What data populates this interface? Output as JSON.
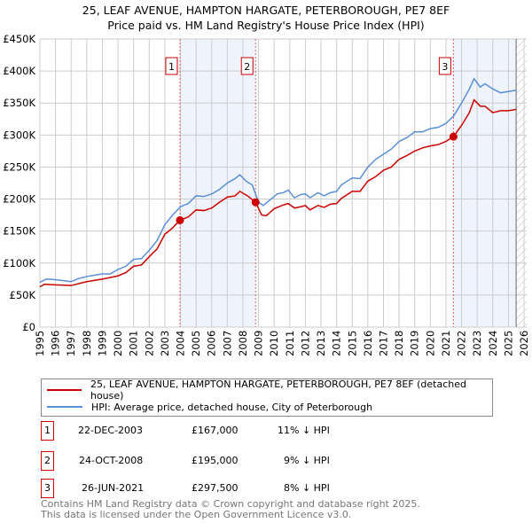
{
  "title": "25, LEAF AVENUE, HAMPTON HARGATE, PETERBOROUGH, PE7 8EF",
  "subtitle": "Price paid vs. HM Land Registry's House Price Index (HPI)",
  "chart_data": {
    "type": "line",
    "ylim": [
      0,
      450000
    ],
    "xlim": [
      1995,
      2026
    ],
    "yticks": [
      {
        "v": 0,
        "l": "£0"
      },
      {
        "v": 50000,
        "l": "£50K"
      },
      {
        "v": 100000,
        "l": "£100K"
      },
      {
        "v": 150000,
        "l": "£150K"
      },
      {
        "v": 200000,
        "l": "£200K"
      },
      {
        "v": 250000,
        "l": "£250K"
      },
      {
        "v": 300000,
        "l": "£300K"
      },
      {
        "v": 350000,
        "l": "£350K"
      },
      {
        "v": 400000,
        "l": "£400K"
      },
      {
        "v": 450000,
        "l": "£450K"
      }
    ],
    "xticks": [
      "1995",
      "1996",
      "1997",
      "1998",
      "1999",
      "2000",
      "2001",
      "2002",
      "2003",
      "2004",
      "2005",
      "2006",
      "2007",
      "2008",
      "2009",
      "2010",
      "2011",
      "2012",
      "2013",
      "2014",
      "2015",
      "2016",
      "2017",
      "2018",
      "2019",
      "2020",
      "2021",
      "2022",
      "2023",
      "2024",
      "2025",
      "2026"
    ],
    "series": [
      {
        "name": "HPI: Average price, detached house, City of Peterborough",
        "color": "#5b8fd6",
        "points": [
          [
            1995,
            70
          ],
          [
            1995.4,
            75
          ],
          [
            1996,
            74
          ],
          [
            1997,
            71
          ],
          [
            1997.5,
            76
          ],
          [
            1998,
            79
          ],
          [
            1999,
            83
          ],
          [
            1999.5,
            83
          ],
          [
            2000,
            90
          ],
          [
            2000.5,
            95
          ],
          [
            2001,
            106
          ],
          [
            2001.5,
            107
          ],
          [
            2002,
            120
          ],
          [
            2002.5,
            135
          ],
          [
            2003,
            160
          ],
          [
            2003.5,
            175
          ],
          [
            2004,
            188
          ],
          [
            2004.5,
            193
          ],
          [
            2005,
            205
          ],
          [
            2005.5,
            204
          ],
          [
            2006,
            208
          ],
          [
            2006.5,
            215
          ],
          [
            2007,
            225
          ],
          [
            2007.5,
            232
          ],
          [
            2007.8,
            238
          ],
          [
            2008.2,
            228
          ],
          [
            2008.6,
            222
          ],
          [
            2009,
            195
          ],
          [
            2009.3,
            190
          ],
          [
            2009.8,
            200
          ],
          [
            2010.2,
            208
          ],
          [
            2010.6,
            210
          ],
          [
            2010.9,
            214
          ],
          [
            2011.3,
            202
          ],
          [
            2011.7,
            207
          ],
          [
            2012,
            208
          ],
          [
            2012.3,
            202
          ],
          [
            2012.8,
            210
          ],
          [
            2013.2,
            205
          ],
          [
            2013.6,
            210
          ],
          [
            2014,
            212
          ],
          [
            2014.3,
            222
          ],
          [
            2015,
            233
          ],
          [
            2015.5,
            232
          ],
          [
            2016,
            250
          ],
          [
            2016.5,
            262
          ],
          [
            2017,
            270
          ],
          [
            2017.5,
            278
          ],
          [
            2018,
            290
          ],
          [
            2018.5,
            296
          ],
          [
            2019,
            305
          ],
          [
            2019.5,
            305
          ],
          [
            2020,
            310
          ],
          [
            2020.5,
            312
          ],
          [
            2021,
            318
          ],
          [
            2021.5,
            330
          ],
          [
            2022,
            350
          ],
          [
            2022.5,
            372
          ],
          [
            2022.8,
            388
          ],
          [
            2023.2,
            375
          ],
          [
            2023.5,
            380
          ],
          [
            2024,
            372
          ],
          [
            2024.5,
            366
          ],
          [
            2025,
            368
          ],
          [
            2025.5,
            370
          ]
        ]
      },
      {
        "name": "25, LEAF AVENUE, HAMPTON HARGATE, PETERBOROUGH, PE7 8EF (detached house)",
        "color": "#cc0000",
        "points": [
          [
            1995,
            63
          ],
          [
            1995.3,
            67
          ],
          [
            1996,
            66
          ],
          [
            1997,
            65
          ],
          [
            1998,
            71
          ],
          [
            1999,
            75
          ],
          [
            2000,
            80
          ],
          [
            2000.5,
            85
          ],
          [
            2001,
            95
          ],
          [
            2001.5,
            97
          ],
          [
            2002,
            110
          ],
          [
            2002.5,
            122
          ],
          [
            2003,
            145
          ],
          [
            2003.5,
            155
          ],
          [
            2003.97,
            167
          ],
          [
            2004.5,
            172
          ],
          [
            2005,
            183
          ],
          [
            2005.5,
            182
          ],
          [
            2006,
            186
          ],
          [
            2006.5,
            195
          ],
          [
            2007,
            203
          ],
          [
            2007.5,
            205
          ],
          [
            2007.8,
            212
          ],
          [
            2008.3,
            205
          ],
          [
            2008.81,
            195
          ],
          [
            2009.2,
            175
          ],
          [
            2009.5,
            174
          ],
          [
            2010,
            185
          ],
          [
            2010.5,
            190
          ],
          [
            2010.9,
            193
          ],
          [
            2011.3,
            186
          ],
          [
            2011.7,
            188
          ],
          [
            2012,
            190
          ],
          [
            2012.3,
            183
          ],
          [
            2012.8,
            190
          ],
          [
            2013.2,
            187
          ],
          [
            2013.6,
            192
          ],
          [
            2014,
            193
          ],
          [
            2014.3,
            201
          ],
          [
            2015,
            212
          ],
          [
            2015.5,
            212
          ],
          [
            2016,
            228
          ],
          [
            2016.5,
            235
          ],
          [
            2017,
            245
          ],
          [
            2017.5,
            250
          ],
          [
            2018,
            262
          ],
          [
            2018.5,
            268
          ],
          [
            2019,
            275
          ],
          [
            2019.5,
            280
          ],
          [
            2020,
            283
          ],
          [
            2020.5,
            285
          ],
          [
            2021,
            290
          ],
          [
            2021.48,
            297.5
          ],
          [
            2022,
            315
          ],
          [
            2022.5,
            335
          ],
          [
            2022.8,
            355
          ],
          [
            2023.2,
            345
          ],
          [
            2023.5,
            345
          ],
          [
            2024,
            335
          ],
          [
            2024.5,
            338
          ],
          [
            2025,
            338
          ],
          [
            2025.5,
            340
          ]
        ]
      }
    ],
    "sales": [
      {
        "label": "1",
        "x": 2003.97,
        "y": 167000
      },
      {
        "label": "2",
        "x": 2008.81,
        "y": 195000
      },
      {
        "label": "3",
        "x": 2021.48,
        "y": 297500
      }
    ],
    "shaded": [
      [
        2003.97,
        2008.81
      ],
      [
        2021.48,
        2025.5
      ]
    ],
    "forecast_from": 2025.5
  },
  "legend": {
    "red": "25, LEAF AVENUE, HAMPTON HARGATE, PETERBOROUGH, PE7 8EF (detached house)",
    "blue": "HPI: Average price, detached house, City of Peterborough"
  },
  "rows": [
    {
      "n": "1",
      "date": "22-DEC-2003",
      "price": "£167,000",
      "hpi": "11% ↓ HPI"
    },
    {
      "n": "2",
      "date": "24-OCT-2008",
      "price": "£195,000",
      "hpi": "9% ↓ HPI"
    },
    {
      "n": "3",
      "date": "26-JUN-2021",
      "price": "£297,500",
      "hpi": "8% ↓ HPI"
    }
  ],
  "footer": [
    "Contains HM Land Registry data © Crown copyright and database right 2025.",
    "This data is licensed under the Open Government Licence v3.0."
  ]
}
